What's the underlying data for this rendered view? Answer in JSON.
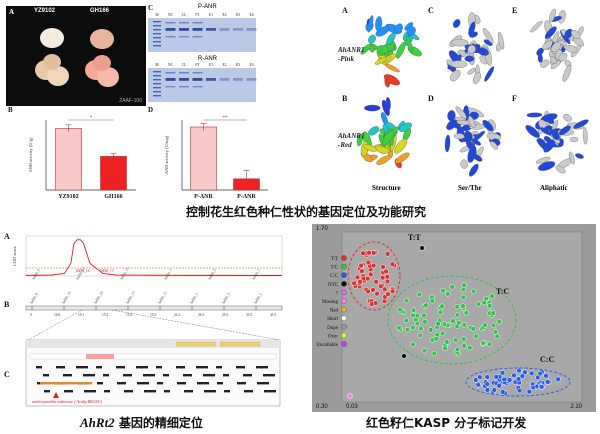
{
  "panel_a": {
    "letter": "A",
    "label_left": "YZ9102",
    "label_right": "GH166",
    "footer": "ZAAF-100"
  },
  "panel_b": {
    "letter": "B",
    "ylabel": "ANR activity (U/g)",
    "significance": "*",
    "chart_data": {
      "type": "bar",
      "categories": [
        "YZ9102",
        "GH166"
      ],
      "values": [
        0.88,
        0.48
      ],
      "ylabel": "ANR activity (U/g)"
    }
  },
  "panel_c": {
    "letter": "C",
    "top_title": "P-ANR",
    "bottom_title": "R-ANR",
    "lanes_top": [
      "M",
      "NC",
      "CL",
      "FT",
      "E1",
      "E2",
      "E3",
      "E4"
    ],
    "lanes_bottom": [
      "M",
      "NC",
      "CL",
      "FT",
      "E1",
      "E2",
      "E3",
      "E4"
    ]
  },
  "panel_d": {
    "letter": "D",
    "ylabel": "ANR activity (U/mg)",
    "significance": "**",
    "chart_data": {
      "type": "bar",
      "categories": [
        "P-ANR",
        "P-ANR"
      ],
      "values": [
        0.9,
        0.16
      ],
      "ylabel": "ANR activity (U/mg)"
    }
  },
  "structures": {
    "letters": [
      "A",
      "C",
      "E",
      "B",
      "D",
      "F"
    ],
    "row1_label": "AhANR1\n-Pink",
    "row2_label": "AhANR1\n-Red",
    "row1_label_a": "AhANR1",
    "row1_label_b": "-Pink",
    "row2_label_a": "AhANR1",
    "row2_label_b": "-Red",
    "col_labels": [
      "Structure",
      "Ser/Thr",
      "Aliphatic"
    ]
  },
  "main_title": "控制花生红色种仁性状的基因定位及功能研究",
  "mapping": {
    "letter_a": "A",
    "letter_b": "B",
    "letter_c": "C",
    "lod_label": "LOD score",
    "peak_labels": [
      "InDel_14",
      "InDel_15"
    ],
    "x_markers": [
      "InDel_9",
      "InDel_13",
      "InDel_11",
      "InDel_5",
      "InDel_3",
      "InDel_1"
    ],
    "chart_data": {
      "type": "line",
      "xlabel": "",
      "ylabel": "LOD score",
      "x": [
        0,
        2,
        4,
        6,
        7,
        7.5,
        8,
        8.5,
        9,
        10,
        12,
        14,
        20,
        25,
        30,
        35,
        40
      ],
      "y": [
        0.5,
        0.6,
        0.8,
        2,
        10,
        26,
        29,
        29,
        26,
        10,
        2,
        0.8,
        0.6,
        0.5,
        0.5,
        0.4,
        0.4
      ]
    },
    "map_markers": [
      "InDel_9",
      "InDel_16",
      "InDel_14",
      "InDel_13",
      "InDel_11",
      "InDel_5",
      "InDel_3",
      "InDel_1"
    ],
    "map_positions": [
      "0",
      "14.6",
      "15.1",
      "15.2",
      "15.3",
      "19.5",
      "24.3",
      "26.3",
      "29.3",
      "33.5",
      "41.0"
    ],
    "gene_label": "anthocyanidin reductase ( Arahy.IB3J4U)",
    "bottom_caption_gene": "AhRt2",
    "bottom_caption_rest": " 基因的精细定位"
  },
  "kasp": {
    "y_top": "1.70",
    "y_bottom": "0.30",
    "x_left": "0.03",
    "x_right": "2.10",
    "legend": [
      {
        "label": "T:T",
        "color": "#e0302e"
      },
      {
        "label": "T:C",
        "color": "#33c24a"
      },
      {
        "label": "C:C",
        "color": "#2a5de6"
      },
      {
        "label": "NTC",
        "color": "#111111"
      },
      {
        "label": "?",
        "color": "#e066ff"
      },
      {
        "label": "Missing",
        "color": "#ff77ff"
      },
      {
        "label": "Bad",
        "color": "#f0b020"
      },
      {
        "label": "Short",
        "color": "#f5f5f5"
      },
      {
        "label": "Dupe",
        "color": "#999999"
      },
      {
        "label": "Over",
        "color": "#ccff33"
      },
      {
        "label": "Uncallable",
        "color": "#cc33ff"
      }
    ],
    "cluster_labels": [
      "T:T",
      "T:C",
      "C:C"
    ],
    "caption": "红色籽仁KASP 分子标记开发"
  }
}
